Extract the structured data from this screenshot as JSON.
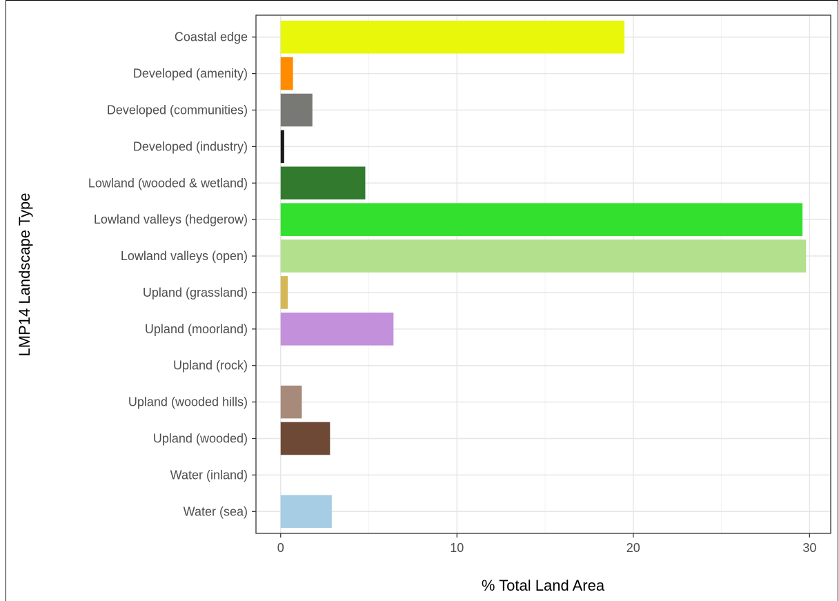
{
  "chart_data": {
    "type": "bar",
    "orientation": "horizontal",
    "xlabel": "% Total Land Area",
    "ylabel": "LMP14 Landscape Type",
    "xlim": [
      -1.4,
      31.2
    ],
    "x_ticks": [
      0,
      10,
      20,
      30
    ],
    "x_tick_labels": [
      "0",
      "10",
      "20",
      "30"
    ],
    "grid": true,
    "categories": [
      "Coastal edge",
      "Developed (amenity)",
      "Developed (communities)",
      "Developed (industry)",
      "Lowland (wooded & wetland)",
      "Lowland valleys (hedgerow)",
      "Lowland valleys (open)",
      "Upland (grassland)",
      "Upland (moorland)",
      "Upland (rock)",
      "Upland (wooded hills)",
      "Upland (wooded)",
      "Water (inland)",
      "Water (sea)"
    ],
    "values": [
      19.5,
      0.7,
      1.8,
      0.2,
      4.8,
      29.6,
      29.8,
      0.4,
      6.4,
      0,
      1.2,
      2.8,
      0,
      2.9
    ],
    "colors": [
      "#e9f70a",
      "#ff8c00",
      "#787874",
      "#1a1a1a",
      "#317a2e",
      "#33e02e",
      "#b3e08c",
      "#d6b756",
      "#c390db",
      "#cccccc",
      "#a88a7a",
      "#6e4a36",
      "#cccccc",
      "#a6cde3"
    ]
  }
}
